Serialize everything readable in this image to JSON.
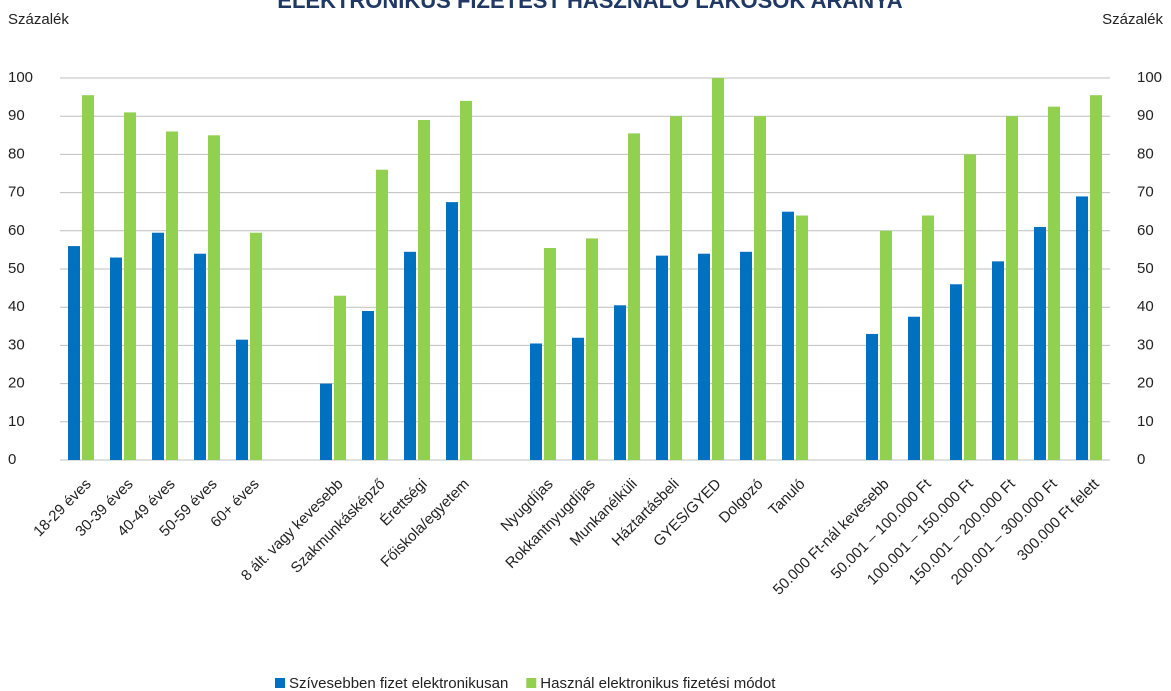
{
  "chart_data": {
    "type": "bar",
    "title": "ELEKTRONIKUS FIZETÉST HASZNÁLÓ LAKOSOK ARÁNYA",
    "y_label": "Százalék",
    "y2_label": "Százalék",
    "categories": [
      "18-29 éves",
      "30-39 éves",
      "40-49 éves",
      "50-59 éves",
      "60+ éves",
      null,
      "8 ált. vagy kevesebb",
      "Szakmunkásképző",
      "Érettségi",
      "Főiskola/egyetem",
      null,
      "Nyugdíjas",
      "Rokkantnyugdíjas",
      "Munkanélküli",
      "Háztartásbeli",
      "GYES/GYED",
      "Dolgozó",
      "Tanuló",
      null,
      "50.000 Ft-nál kevesebb",
      "50.001 – 100.000 Ft",
      "100.001 – 150.000 Ft",
      "150.001 – 200.000 Ft",
      "200.001 – 300.000 Ft",
      "300.000 Ft felett"
    ],
    "series": [
      {
        "name": "Szívesebben fizet elektronikusan",
        "color": "#0070c0",
        "values": [
          56,
          53,
          59.5,
          54,
          31.5,
          null,
          20,
          39,
          54.5,
          67.5,
          null,
          30.5,
          32,
          40.5,
          53.5,
          54,
          54.5,
          65,
          null,
          33,
          37.5,
          46,
          52,
          61,
          69
        ]
      },
      {
        "name": "Használ elektronikus fizetési módot",
        "color": "#92d050",
        "values": [
          95.5,
          91,
          86,
          85,
          59.5,
          null,
          43,
          76,
          89,
          94,
          null,
          55.5,
          58,
          85.5,
          90,
          100,
          90,
          64,
          null,
          60,
          64,
          80,
          90,
          92.5,
          95.5
        ]
      }
    ],
    "ylim": [
      0,
      100
    ],
    "yticks": [
      0,
      10,
      20,
      30,
      40,
      50,
      60,
      70,
      80,
      90,
      100
    ],
    "y2lim": [
      0,
      100
    ],
    "y2ticks": [
      0,
      10,
      20,
      30,
      40,
      50,
      60,
      70,
      80,
      90,
      100
    ],
    "grid": true,
    "legend": "bottom"
  }
}
